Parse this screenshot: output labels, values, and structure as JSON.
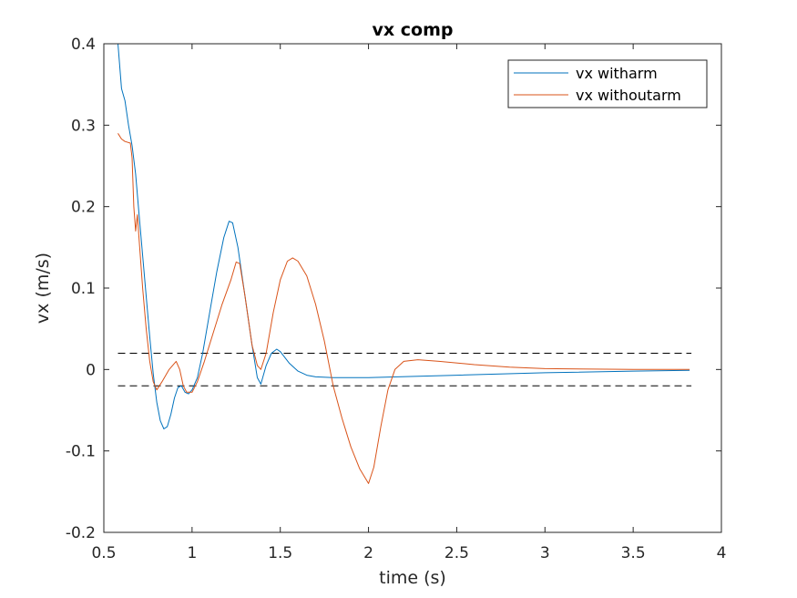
{
  "chart_data": {
    "type": "line",
    "title": "vx comp",
    "xlabel": "time (s)",
    "ylabel": "vx (m/s)",
    "xlim": [
      0.5,
      4
    ],
    "ylim": [
      -0.2,
      0.4
    ],
    "xticks": [
      0.5,
      1,
      1.5,
      2,
      2.5,
      3,
      3.5,
      4
    ],
    "xtick_labels": [
      "0.5",
      "1",
      "1.5",
      "2",
      "2.5",
      "3",
      "3.5",
      "4"
    ],
    "yticks": [
      -0.2,
      -0.1,
      0,
      0.1,
      0.2,
      0.3,
      0.4
    ],
    "ytick_labels": [
      "-0.2",
      "-0.1",
      "0",
      "0.1",
      "0.2",
      "0.3",
      "0.4"
    ],
    "grid": false,
    "legend_position": "top-right",
    "series": [
      {
        "name": "vx witharm",
        "color": "#0072BD",
        "points": [
          [
            0.58,
            0.4
          ],
          [
            0.6,
            0.345
          ],
          [
            0.62,
            0.33
          ],
          [
            0.64,
            0.3
          ],
          [
            0.66,
            0.275
          ],
          [
            0.68,
            0.24
          ],
          [
            0.7,
            0.19
          ],
          [
            0.72,
            0.14
          ],
          [
            0.74,
            0.09
          ],
          [
            0.76,
            0.04
          ],
          [
            0.78,
            -0.005
          ],
          [
            0.8,
            -0.04
          ],
          [
            0.82,
            -0.063
          ],
          [
            0.84,
            -0.073
          ],
          [
            0.86,
            -0.07
          ],
          [
            0.88,
            -0.055
          ],
          [
            0.9,
            -0.035
          ],
          [
            0.92,
            -0.022
          ],
          [
            0.94,
            -0.02
          ],
          [
            0.96,
            -0.028
          ],
          [
            0.98,
            -0.03
          ],
          [
            1.0,
            -0.025
          ],
          [
            1.03,
            -0.01
          ],
          [
            1.06,
            0.02
          ],
          [
            1.1,
            0.07
          ],
          [
            1.14,
            0.12
          ],
          [
            1.18,
            0.162
          ],
          [
            1.21,
            0.182
          ],
          [
            1.23,
            0.18
          ],
          [
            1.26,
            0.15
          ],
          [
            1.3,
            0.09
          ],
          [
            1.34,
            0.03
          ],
          [
            1.37,
            -0.01
          ],
          [
            1.39,
            -0.018
          ],
          [
            1.42,
            0.005
          ],
          [
            1.45,
            0.02
          ],
          [
            1.48,
            0.025
          ],
          [
            1.5,
            0.022
          ],
          [
            1.55,
            0.008
          ],
          [
            1.6,
            -0.002
          ],
          [
            1.65,
            -0.007
          ],
          [
            1.7,
            -0.009
          ],
          [
            1.8,
            -0.01
          ],
          [
            2.0,
            -0.01
          ],
          [
            2.5,
            -0.007
          ],
          [
            3.0,
            -0.004
          ],
          [
            3.5,
            -0.002
          ],
          [
            3.82,
            -0.001
          ]
        ]
      },
      {
        "name": "vx withoutarm",
        "color": "#D95319",
        "points": [
          [
            0.58,
            0.29
          ],
          [
            0.6,
            0.283
          ],
          [
            0.62,
            0.28
          ],
          [
            0.65,
            0.278
          ],
          [
            0.66,
            0.26
          ],
          [
            0.67,
            0.2
          ],
          [
            0.68,
            0.17
          ],
          [
            0.69,
            0.19
          ],
          [
            0.7,
            0.16
          ],
          [
            0.72,
            0.1
          ],
          [
            0.74,
            0.05
          ],
          [
            0.76,
            0.01
          ],
          [
            0.78,
            -0.015
          ],
          [
            0.8,
            -0.025
          ],
          [
            0.83,
            -0.015
          ],
          [
            0.87,
            0.0
          ],
          [
            0.91,
            0.01
          ],
          [
            0.93,
            0.0
          ],
          [
            0.95,
            -0.02
          ],
          [
            0.97,
            -0.028
          ],
          [
            1.0,
            -0.028
          ],
          [
            1.03,
            -0.015
          ],
          [
            1.07,
            0.01
          ],
          [
            1.12,
            0.045
          ],
          [
            1.17,
            0.08
          ],
          [
            1.22,
            0.11
          ],
          [
            1.25,
            0.132
          ],
          [
            1.27,
            0.13
          ],
          [
            1.3,
            0.09
          ],
          [
            1.34,
            0.03
          ],
          [
            1.37,
            0.005
          ],
          [
            1.39,
            0.0
          ],
          [
            1.42,
            0.02
          ],
          [
            1.46,
            0.07
          ],
          [
            1.5,
            0.11
          ],
          [
            1.54,
            0.133
          ],
          [
            1.57,
            0.137
          ],
          [
            1.6,
            0.133
          ],
          [
            1.65,
            0.115
          ],
          [
            1.7,
            0.08
          ],
          [
            1.75,
            0.035
          ],
          [
            1.8,
            -0.02
          ],
          [
            1.85,
            -0.06
          ],
          [
            1.9,
            -0.095
          ],
          [
            1.95,
            -0.122
          ],
          [
            2.0,
            -0.14
          ],
          [
            2.03,
            -0.12
          ],
          [
            2.07,
            -0.07
          ],
          [
            2.11,
            -0.025
          ],
          [
            2.15,
            0.0
          ],
          [
            2.2,
            0.01
          ],
          [
            2.28,
            0.012
          ],
          [
            2.4,
            0.01
          ],
          [
            2.6,
            0.006
          ],
          [
            2.8,
            0.003
          ],
          [
            3.0,
            0.001
          ],
          [
            3.5,
            0.0
          ],
          [
            3.82,
            0.0
          ]
        ]
      }
    ],
    "reference_lines": [
      {
        "y": 0.02,
        "x_start": 0.58,
        "x_end": 3.83,
        "style": "dashed",
        "color": "#000000"
      },
      {
        "y": -0.02,
        "x_start": 0.58,
        "x_end": 3.83,
        "style": "dashed",
        "color": "#000000"
      }
    ]
  }
}
